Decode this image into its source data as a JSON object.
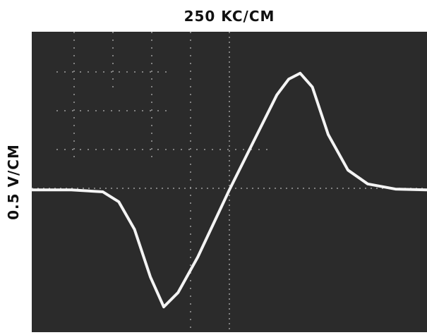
{
  "chart_data": {
    "type": "line",
    "x_label": "250 KC/CM",
    "y_label": "0.5 V/CM",
    "x": [
      -5,
      -4,
      -3.2,
      -2.8,
      -2.4,
      -2.0,
      -1.66,
      -1.3,
      -0.8,
      -0.4,
      0,
      0.4,
      0.8,
      1.2,
      1.5,
      1.79,
      2.1,
      2.5,
      3.0,
      3.5,
      4.2,
      5
    ],
    "values": [
      0,
      0,
      -0.05,
      -0.3,
      -1.0,
      -2.2,
      -2.96,
      -2.6,
      -1.7,
      -0.85,
      0,
      0.8,
      1.6,
      2.4,
      2.8,
      2.95,
      2.6,
      1.4,
      0.5,
      0.15,
      0.02,
      0
    ],
    "color": "#f4f4f4",
    "xlim": [
      -5,
      5
    ],
    "ylim": [
      -3.6,
      4.0
    ]
  }
}
